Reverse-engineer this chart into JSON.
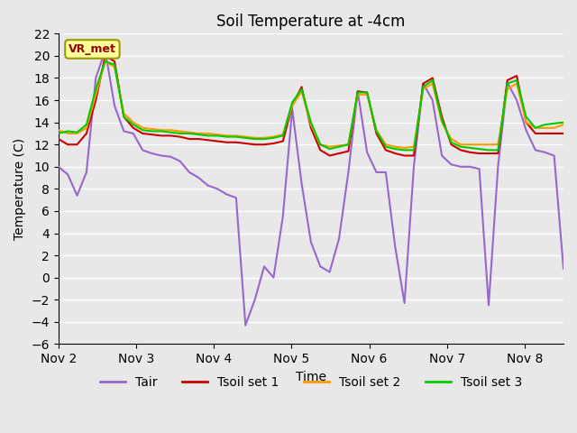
{
  "title": "Soil Temperature at -4cm",
  "xlabel": "Time",
  "ylabel": "Temperature (C)",
  "ylim": [
    -6,
    22
  ],
  "yticks": [
    -6,
    -4,
    -2,
    0,
    2,
    4,
    6,
    8,
    10,
    12,
    14,
    16,
    18,
    20,
    22
  ],
  "xlim_days": [
    0,
    6.5
  ],
  "x_tick_labels": [
    "Nov 2",
    "Nov 3",
    "Nov 4",
    "Nov 5",
    "Nov 6",
    "Nov 7",
    "Nov 8"
  ],
  "x_tick_positions": [
    0,
    1,
    2,
    3,
    4,
    5,
    6
  ],
  "background_color": "#e8e8e8",
  "plot_bg_color": "#e8e8e8",
  "grid_color": "#ffffff",
  "legend_entries": [
    "Tair",
    "Tsoil set 1",
    "Tsoil set 2",
    "Tsoil set 3"
  ],
  "legend_colors": [
    "#9966cc",
    "#cc0000",
    "#ff9900",
    "#00cc00"
  ],
  "annotation_text": "VR_met",
  "annotation_box_color": "#ffff99",
  "annotation_border_color": "#999900",
  "tair": [
    10.0,
    9.3,
    7.4,
    9.5,
    18.0,
    20.5,
    15.5,
    13.2,
    13.0,
    11.5,
    11.2,
    11.0,
    10.9,
    10.5,
    9.5,
    9.0,
    8.3,
    8.0,
    7.5,
    7.2,
    -4.3,
    -2.0,
    1.0,
    0.0,
    5.5,
    15.2,
    8.5,
    3.2,
    1.0,
    0.5,
    3.5,
    9.5,
    16.8,
    11.3,
    9.5,
    9.5,
    2.8,
    -2.3,
    10.0,
    17.5,
    16.0,
    11.0,
    10.2,
    10.0,
    10.0,
    9.8,
    -2.5,
    10.0,
    17.6,
    16.0,
    13.3,
    11.5,
    11.3,
    11.0,
    0.8
  ],
  "tsoil1": [
    12.5,
    12.0,
    12.0,
    13.0,
    16.0,
    20.0,
    19.5,
    14.5,
    13.5,
    13.0,
    12.9,
    12.8,
    12.8,
    12.7,
    12.5,
    12.5,
    12.4,
    12.3,
    12.2,
    12.2,
    12.1,
    12.0,
    12.0,
    12.1,
    12.3,
    15.5,
    17.2,
    13.5,
    11.5,
    11.0,
    11.2,
    11.4,
    16.8,
    16.7,
    13.0,
    11.5,
    11.2,
    11.0,
    11.0,
    17.5,
    18.0,
    14.5,
    12.0,
    11.5,
    11.3,
    11.2,
    11.2,
    11.2,
    17.8,
    18.2,
    14.0,
    13.0,
    13.0,
    13.0,
    13.0
  ],
  "tsoil2": [
    13.3,
    13.0,
    13.0,
    13.5,
    16.5,
    19.5,
    19.0,
    14.8,
    14.0,
    13.5,
    13.4,
    13.3,
    13.3,
    13.2,
    13.1,
    13.0,
    13.0,
    12.9,
    12.8,
    12.8,
    12.7,
    12.6,
    12.6,
    12.7,
    12.9,
    15.5,
    16.8,
    13.8,
    12.0,
    11.8,
    11.9,
    12.0,
    16.5,
    16.5,
    13.3,
    12.0,
    11.8,
    11.7,
    11.8,
    17.0,
    17.5,
    14.0,
    12.5,
    12.0,
    12.0,
    12.0,
    12.0,
    12.0,
    17.0,
    17.5,
    14.0,
    13.5,
    13.5,
    13.5,
    13.8
  ],
  "tsoil3": [
    13.0,
    13.2,
    13.1,
    13.8,
    17.0,
    19.5,
    19.2,
    14.5,
    13.8,
    13.3,
    13.2,
    13.2,
    13.1,
    13.0,
    13.0,
    12.9,
    12.8,
    12.8,
    12.7,
    12.7,
    12.6,
    12.5,
    12.5,
    12.6,
    12.8,
    15.8,
    17.0,
    14.0,
    12.0,
    11.6,
    11.8,
    12.0,
    16.7,
    16.7,
    13.2,
    11.8,
    11.6,
    11.5,
    11.5,
    17.2,
    17.8,
    14.2,
    12.2,
    11.8,
    11.7,
    11.6,
    11.5,
    11.5,
    17.5,
    17.8,
    14.5,
    13.5,
    13.8,
    13.9,
    14.0
  ]
}
